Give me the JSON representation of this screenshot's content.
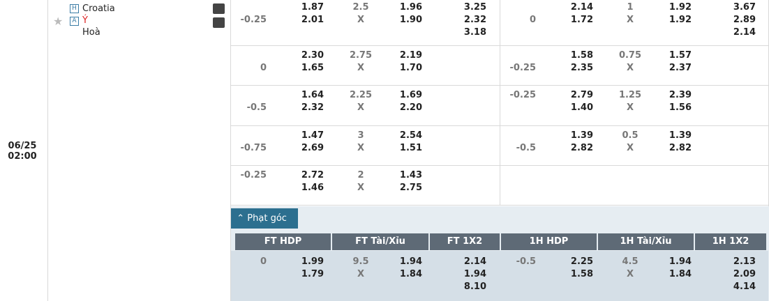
{
  "match": {
    "date": "06/25",
    "time": "02:00",
    "home_badge": "H",
    "home": "Croatia",
    "away_badge": "A",
    "away": "Ý",
    "draw": "Hoà"
  },
  "odds": {
    "rows": [
      {
        "ft": {
          "hdp": "-0.25",
          "home": "1.87",
          "away": "2.01",
          "ou": "2.5",
          "mid": "X",
          "over": "1.96",
          "under": "1.90",
          "x12": [
            "3.25",
            "2.32",
            "3.18"
          ]
        },
        "h1": {
          "hdp": "0",
          "home": "2.14",
          "away": "1.72",
          "ou": "1",
          "mid": "X",
          "over": "1.92",
          "under": "1.92",
          "x12": [
            "3.67",
            "2.89",
            "2.14"
          ]
        }
      },
      {
        "ft": {
          "hdp": "0",
          "home": "2.30",
          "away": "1.65",
          "ou": "2.75",
          "mid": "X",
          "over": "2.19",
          "under": "1.70"
        },
        "h1": {
          "hdp": "-0.25",
          "home": "1.58",
          "away": "2.35",
          "ou": "0.75",
          "mid": "X",
          "over": "1.57",
          "under": "2.37"
        }
      },
      {
        "ft": {
          "hdp": "-0.5",
          "home": "1.64",
          "away": "2.32",
          "ou": "2.25",
          "mid": "X",
          "over": "1.69",
          "under": "2.20"
        },
        "h1": {
          "hdp": "-0.25",
          "home": "2.79",
          "away": "1.40",
          "ou": "1.25",
          "mid": "X",
          "over": "2.39",
          "under": "1.56"
        }
      },
      {
        "ft": {
          "hdp": "-0.75",
          "home": "1.47",
          "away": "2.69",
          "ou": "3",
          "mid": "X",
          "over": "2.54",
          "under": "1.51"
        },
        "h1": {
          "hdp": "-0.5",
          "home": "1.39",
          "away": "2.82",
          "ou": "0.5",
          "mid": "X",
          "over": "1.39",
          "under": "2.82"
        }
      },
      {
        "ft": {
          "hdp": "-0.25",
          "home": "2.72",
          "away": "1.46",
          "ou": "2",
          "mid": "X",
          "over": "1.43",
          "under": "2.75"
        }
      }
    ]
  },
  "corners": {
    "tab": "Phạt góc",
    "headers": [
      "FT HDP",
      "FT Tài/Xỉu",
      "FT 1X2",
      "1H HDP",
      "1H Tài/Xỉu",
      "1H 1X2"
    ],
    "row": {
      "ft": {
        "hdp": "0",
        "home": "1.99",
        "away": "1.79",
        "ou": "9.5",
        "mid": "X",
        "over": "1.94",
        "under": "1.84",
        "x12": [
          "2.14",
          "1.94",
          "8.10"
        ]
      },
      "h1": {
        "hdp": "-0.5",
        "home": "2.25",
        "away": "1.58",
        "ou": "4.5",
        "mid": "X",
        "over": "1.94",
        "under": "1.84",
        "x12": [
          "2.13",
          "2.09",
          "4.14"
        ]
      }
    }
  }
}
